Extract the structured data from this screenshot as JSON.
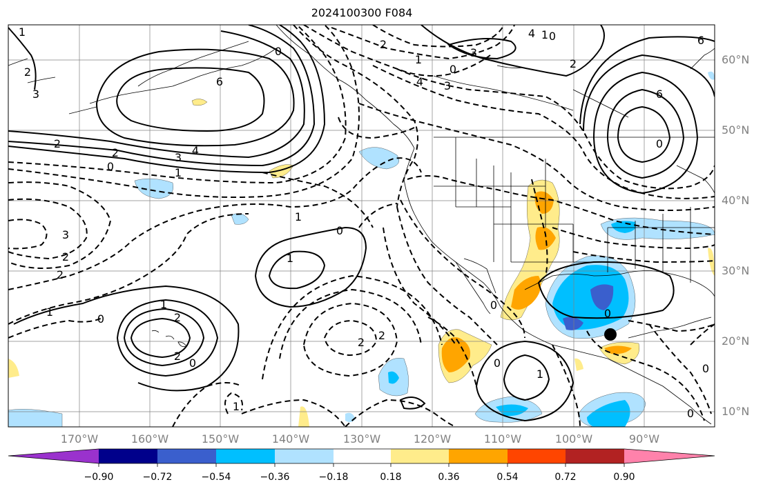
{
  "title": "2024100300 F084",
  "lat_labels": [
    "60°N",
    "50°N",
    "40°N",
    "30°N",
    "20°N",
    "10°N"
  ],
  "lon_labels": [
    "170°W",
    "160°W",
    "150°W",
    "140°W",
    "130°W",
    "120°W",
    "110°W",
    "100°W",
    "90°W"
  ],
  "colorbar": {
    "labels": [
      "−0.90",
      "−0.72",
      "−0.54",
      "−0.36",
      "−0.18",
      "0.18",
      "0.36",
      "0.54",
      "0.72",
      "0.90"
    ],
    "colors": [
      "#9a32cd",
      "#00008b",
      "#3a5fcd",
      "#00bfff",
      "#b0e2ff",
      "#ffffff",
      "#ffec8b",
      "#ffa500",
      "#ff4500",
      "#b22222",
      "#ff82ab"
    ]
  },
  "contour_labels": [
    "1",
    "2",
    "3",
    "6",
    "2",
    "2",
    "3",
    "4",
    "1",
    "0",
    "0",
    "2",
    "3",
    "4",
    "1",
    "0",
    "3",
    "4",
    "1",
    "0",
    "2",
    "6",
    "6",
    "0",
    "1",
    "0",
    "3",
    "2",
    "2",
    "1",
    "0",
    "1",
    "2",
    "2",
    "0",
    "2",
    "2",
    "0",
    "1",
    "0",
    "1",
    "0",
    "0",
    "0",
    "1"
  ],
  "colors": {
    "land_outline": "#000000",
    "grid": "#808080",
    "contour": "#000000",
    "marker": "#000000"
  }
}
